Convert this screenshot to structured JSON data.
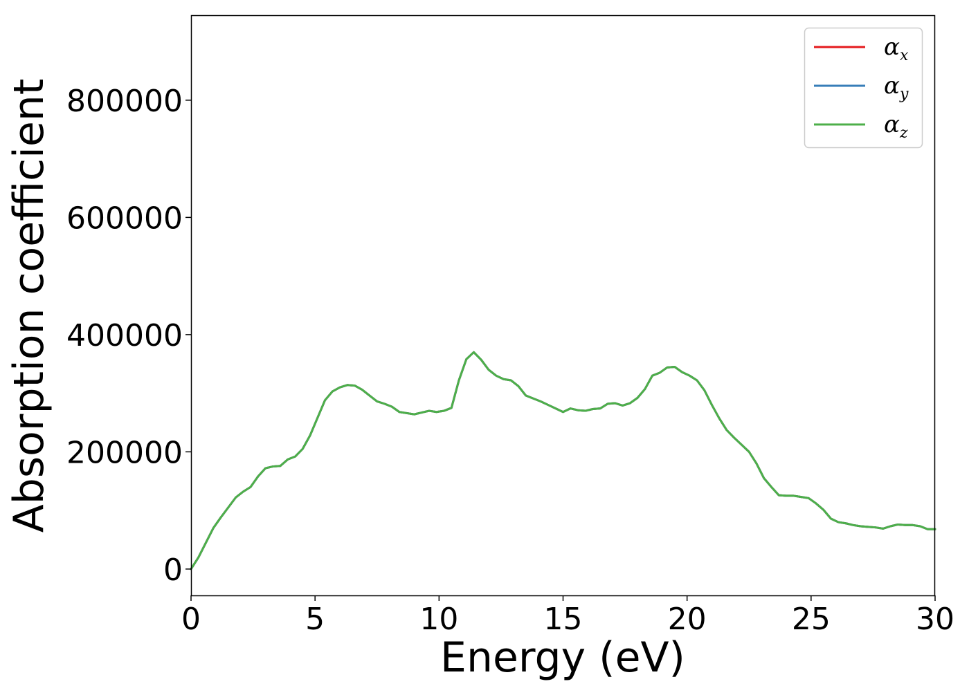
{
  "chart_data": {
    "type": "line",
    "xlabel": "Energy (eV)",
    "ylabel": "Absorption coefficient",
    "xlim": [
      0,
      30
    ],
    "ylim": [
      -45000,
      945000
    ],
    "xticks": [
      0,
      5,
      10,
      15,
      20,
      25,
      30
    ],
    "xtick_labels": [
      "0",
      "5",
      "10",
      "15",
      "20",
      "25",
      "30"
    ],
    "yticks": [
      0,
      200000,
      400000,
      600000,
      800000
    ],
    "ytick_labels": [
      "0",
      "200000",
      "400000",
      "600000",
      "800000"
    ],
    "grid": false,
    "legend_position": "top-right",
    "x": [
      0,
      0.3,
      0.6,
      0.9,
      1.2,
      1.5,
      1.8,
      2.1,
      2.4,
      2.7,
      3.0,
      3.3,
      3.6,
      3.9,
      4.2,
      4.5,
      4.8,
      5.1,
      5.4,
      5.7,
      6.0,
      6.3,
      6.6,
      6.9,
      7.2,
      7.5,
      7.8,
      8.1,
      8.4,
      8.7,
      9.0,
      9.3,
      9.6,
      9.9,
      10.2,
      10.5,
      10.8,
      11.1,
      11.4,
      11.7,
      12.0,
      12.3,
      12.6,
      12.9,
      13.2,
      13.5,
      13.8,
      14.1,
      14.4,
      14.7,
      15.0,
      15.3,
      15.6,
      15.9,
      16.2,
      16.5,
      16.8,
      17.1,
      17.4,
      17.7,
      18.0,
      18.3,
      18.6,
      18.9,
      19.2,
      19.5,
      19.8,
      20.1,
      20.4,
      20.7,
      21.0,
      21.3,
      21.6,
      21.9,
      22.2,
      22.5,
      22.8,
      23.1,
      23.4,
      23.7,
      24.0,
      24.3,
      24.6,
      24.9,
      25.2,
      25.5,
      25.8,
      26.1,
      26.4,
      26.7,
      27.0,
      27.3,
      27.6,
      27.9,
      28.2,
      28.5,
      28.8,
      29.1,
      29.4,
      29.7,
      30.0
    ],
    "series": [
      {
        "name": "αx",
        "color": "#e41a1c",
        "values": [
          0,
          20000,
          45000,
          70000,
          88000,
          105000,
          122000,
          132000,
          140000,
          158000,
          172000,
          175000,
          176000,
          187000,
          192000,
          205000,
          228000,
          258000,
          288000,
          303000,
          310000,
          314000,
          313000,
          306000,
          296000,
          286000,
          282000,
          277000,
          268000,
          266000,
          264000,
          267000,
          270000,
          268000,
          270000,
          275000,
          322000,
          358000,
          370000,
          357000,
          340000,
          330000,
          324000,
          322000,
          312000,
          296000,
          291000,
          286000,
          280000,
          274000,
          268000,
          274000,
          271000,
          270000,
          273000,
          274000,
          282000,
          283000,
          279000,
          283000,
          292000,
          307000,
          330000,
          335000,
          344000,
          345000,
          336000,
          330000,
          322000,
          305000,
          280000,
          257000,
          237000,
          224000,
          212000,
          200000,
          180000,
          155000,
          140000,
          126000,
          125000,
          125000,
          123000,
          121000,
          112000,
          101000,
          86000,
          80000,
          78000,
          75000,
          73000,
          72000,
          71000,
          69000,
          73000,
          76000,
          75000,
          75000,
          73000,
          68000,
          68000
        ]
      },
      {
        "name": "αy",
        "color": "#377eb8",
        "values": [
          0,
          20000,
          45000,
          70000,
          88000,
          105000,
          122000,
          132000,
          140000,
          158000,
          172000,
          175000,
          176000,
          187000,
          192000,
          205000,
          228000,
          258000,
          288000,
          303000,
          310000,
          314000,
          313000,
          306000,
          296000,
          286000,
          282000,
          277000,
          268000,
          266000,
          264000,
          267000,
          270000,
          268000,
          270000,
          275000,
          322000,
          358000,
          370000,
          357000,
          340000,
          330000,
          324000,
          322000,
          312000,
          296000,
          291000,
          286000,
          280000,
          274000,
          268000,
          274000,
          271000,
          270000,
          273000,
          274000,
          282000,
          283000,
          279000,
          283000,
          292000,
          307000,
          330000,
          335000,
          344000,
          345000,
          336000,
          330000,
          322000,
          305000,
          280000,
          257000,
          237000,
          224000,
          212000,
          200000,
          180000,
          155000,
          140000,
          126000,
          125000,
          125000,
          123000,
          121000,
          112000,
          101000,
          86000,
          80000,
          78000,
          75000,
          73000,
          72000,
          71000,
          69000,
          73000,
          76000,
          75000,
          75000,
          73000,
          68000,
          68000
        ]
      },
      {
        "name": "αz",
        "color": "#4daf4a",
        "values": [
          0,
          20000,
          45000,
          70000,
          88000,
          105000,
          122000,
          132000,
          140000,
          158000,
          172000,
          175000,
          176000,
          187000,
          192000,
          205000,
          228000,
          258000,
          288000,
          303000,
          310000,
          314000,
          313000,
          306000,
          296000,
          286000,
          282000,
          277000,
          268000,
          266000,
          264000,
          267000,
          270000,
          268000,
          270000,
          275000,
          322000,
          358000,
          370000,
          357000,
          340000,
          330000,
          324000,
          322000,
          312000,
          296000,
          291000,
          286000,
          280000,
          274000,
          268000,
          274000,
          271000,
          270000,
          273000,
          274000,
          282000,
          283000,
          279000,
          283000,
          292000,
          307000,
          330000,
          335000,
          344000,
          345000,
          336000,
          330000,
          322000,
          305000,
          280000,
          257000,
          237000,
          224000,
          212000,
          200000,
          180000,
          155000,
          140000,
          126000,
          125000,
          125000,
          123000,
          121000,
          112000,
          101000,
          86000,
          80000,
          78000,
          75000,
          73000,
          72000,
          71000,
          69000,
          73000,
          76000,
          75000,
          75000,
          73000,
          68000,
          68000
        ]
      }
    ],
    "legend": [
      {
        "symbol": "α",
        "subscript": "x",
        "color": "#e41a1c"
      },
      {
        "symbol": "α",
        "subscript": "y",
        "color": "#377eb8"
      },
      {
        "symbol": "α",
        "subscript": "z",
        "color": "#4daf4a"
      }
    ]
  }
}
